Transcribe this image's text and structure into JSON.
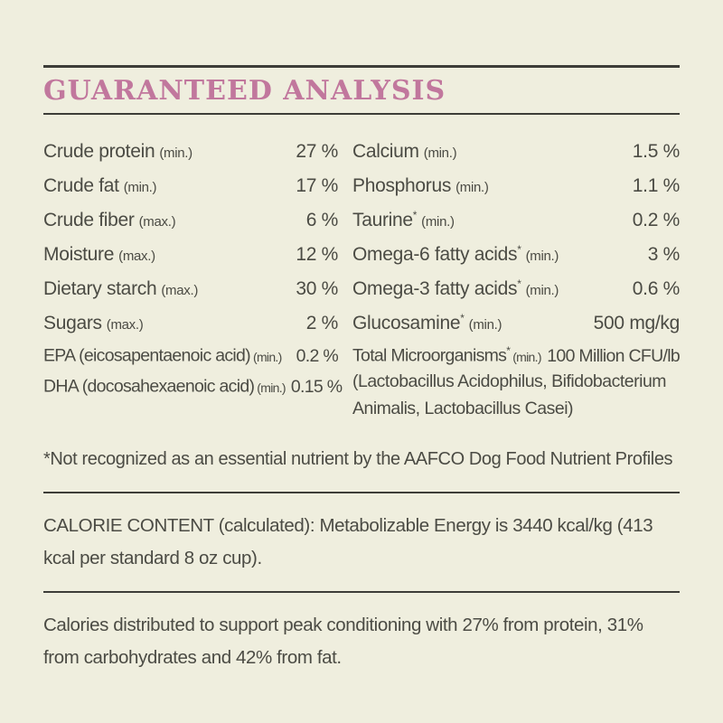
{
  "page": {
    "background_color": "#efeede",
    "text_color": "#4b4b44",
    "accent_color": "#c1779d",
    "rule_color": "#3d3d38"
  },
  "header": {
    "title": "GUARANTEED ANALYSIS"
  },
  "ga": {
    "left": [
      {
        "name": "Crude protein",
        "sup": "",
        "qualifier": "(min.)",
        "value": "27 %"
      },
      {
        "name": "Crude fat",
        "sup": "",
        "qualifier": "(min.)",
        "value": "17 %"
      },
      {
        "name": "Crude fiber",
        "sup": "",
        "qualifier": "(max.)",
        "value": "6 %"
      },
      {
        "name": "Moisture",
        "sup": "",
        "qualifier": "(max.)",
        "value": "12 %"
      },
      {
        "name": "Dietary starch",
        "sup": "",
        "qualifier": "(max.)",
        "value": "30 %"
      },
      {
        "name": "Sugars",
        "sup": "",
        "qualifier": "(max.)",
        "value": "2 %"
      },
      {
        "name": "EPA (eicosapentaenoic acid)",
        "sup": "",
        "qualifier": "(min.)",
        "value": "0.2 %"
      },
      {
        "name": "DHA (docosahexaenoic acid)",
        "sup": "",
        "qualifier": "(min.)",
        "value": "0.15 %"
      }
    ],
    "right": [
      {
        "name": "Calcium",
        "sup": "",
        "qualifier": "(min.)",
        "value": "1.5 %"
      },
      {
        "name": "Phosphorus",
        "sup": "",
        "qualifier": "(min.)",
        "value": "1.1 %"
      },
      {
        "name": "Taurine",
        "sup": "*",
        "qualifier": "(min.)",
        "value": "0.2 %"
      },
      {
        "name": "Omega-6 fatty acids",
        "sup": "*",
        "qualifier": "(min.)",
        "value": "3 %"
      },
      {
        "name": "Omega-3 fatty acids",
        "sup": "*",
        "qualifier": "(min.)",
        "value": "0.6 %"
      },
      {
        "name": "Glucosamine",
        "sup": "*",
        "qualifier": "(min.)",
        "value": "500 mg/kg"
      },
      {
        "name": "Total Microorganisms",
        "sup": "*",
        "qualifier": "(min.)",
        "value": "100 Million CFU/lb"
      }
    ],
    "microorganisms_note": "(Lactobacillus Acidophilus, Bifidobacterium Animalis, Lactobacillus Casei)"
  },
  "footnote": "*Not recognized as an essential nutrient by the AAFCO Dog Food Nutrient Profiles",
  "calorie_content": "CALORIE CONTENT (calculated): Metabolizable Energy is 3440 kcal/kg (413 kcal per standard 8 oz cup).",
  "calorie_distribution": "Calories distributed to support peak conditioning with 27% from protein, 31% from carbohydrates and 42% from fat."
}
